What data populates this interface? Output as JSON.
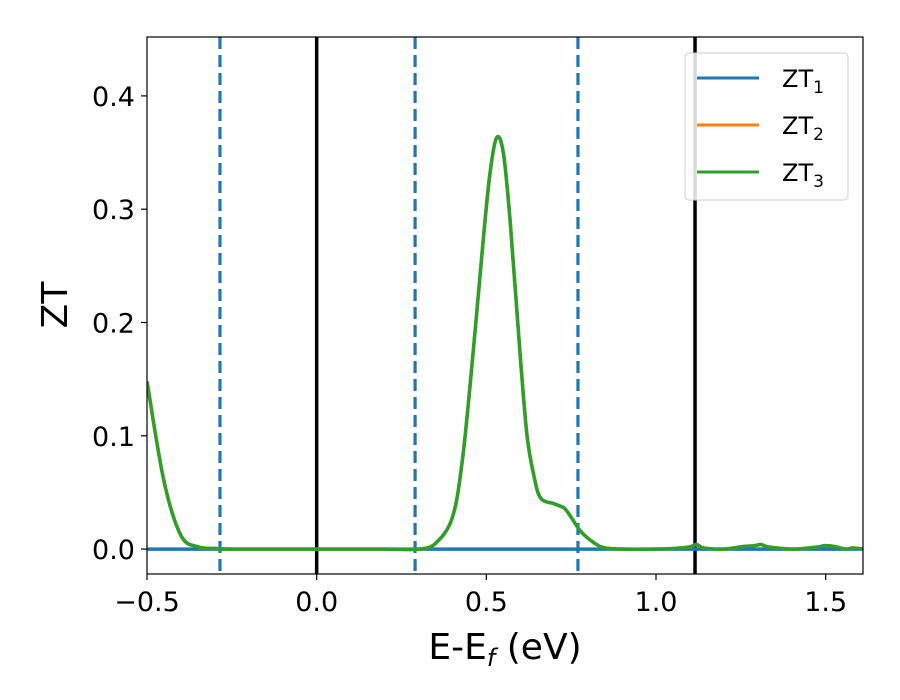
{
  "chart_data": {
    "type": "line",
    "xlabel_main": "E-E",
    "xlabel_sub": "f",
    "xlabel_unit": " (eV)",
    "ylabel": "ZT",
    "xlim": [
      -0.5,
      1.61
    ],
    "ylim": [
      -0.022,
      0.452
    ],
    "xticks": [
      -0.5,
      0.0,
      0.5,
      1.0,
      1.5
    ],
    "xtick_labels": [
      "−0.5",
      "0.0",
      "0.5",
      "1.0",
      "1.5"
    ],
    "yticks": [
      0.0,
      0.1,
      0.2,
      0.3,
      0.4
    ],
    "ytick_labels": [
      "0.0",
      "0.1",
      "0.2",
      "0.3",
      "0.4"
    ],
    "grid": false,
    "legend_position": "top-right",
    "vlines_solid": [
      0.0,
      1.115
    ],
    "vlines_dashed": [
      -0.285,
      0.29,
      0.77
    ],
    "vline_solid_color": "#000000",
    "vline_dashed_color": "#1f77b4",
    "series": [
      {
        "name_main": "ZT",
        "name_sub": "1",
        "color": "#1f77b4",
        "x": [
          -0.5,
          1.61
        ],
        "y": [
          0.0,
          0.0
        ]
      },
      {
        "name_main": "ZT",
        "name_sub": "2",
        "color": "#ff7f0e",
        "x": [
          -0.5,
          -0.45,
          -0.4,
          -0.35,
          -0.3,
          -0.25,
          -0.2,
          0.0,
          0.2,
          0.3,
          0.35,
          0.4,
          0.43,
          0.46,
          0.49,
          0.51,
          0.53,
          0.55,
          0.57,
          0.6,
          0.62,
          0.64,
          0.66,
          0.7,
          0.73,
          0.75,
          0.78,
          0.82,
          0.85,
          0.9,
          1.0,
          1.05,
          1.1,
          1.12,
          1.14,
          1.2,
          1.25,
          1.29,
          1.31,
          1.33,
          1.4,
          1.45,
          1.48,
          1.5,
          1.53,
          1.56,
          1.58,
          1.61
        ],
        "y": [
          0.148,
          0.06,
          0.012,
          0.002,
          0.0005,
          0.0,
          0.0,
          0.0,
          0.0,
          0.0,
          0.005,
          0.028,
          0.08,
          0.17,
          0.27,
          0.33,
          0.363,
          0.35,
          0.29,
          0.17,
          0.1,
          0.065,
          0.045,
          0.04,
          0.036,
          0.028,
          0.015,
          0.005,
          0.001,
          0.0,
          0.0,
          0.0005,
          0.002,
          0.004,
          0.001,
          0.0,
          0.002,
          0.003,
          0.004,
          0.002,
          0.0,
          0.001,
          0.002,
          0.003,
          0.002,
          0.0,
          0.001,
          0.0
        ]
      },
      {
        "name_main": "ZT",
        "name_sub": "3",
        "color": "#2ca02c",
        "x": [
          -0.5,
          -0.45,
          -0.4,
          -0.35,
          -0.3,
          -0.25,
          -0.2,
          0.0,
          0.2,
          0.3,
          0.35,
          0.4,
          0.43,
          0.46,
          0.49,
          0.51,
          0.53,
          0.55,
          0.57,
          0.6,
          0.62,
          0.64,
          0.66,
          0.7,
          0.73,
          0.75,
          0.78,
          0.82,
          0.85,
          0.9,
          1.0,
          1.05,
          1.1,
          1.12,
          1.14,
          1.2,
          1.25,
          1.29,
          1.31,
          1.33,
          1.4,
          1.45,
          1.48,
          1.5,
          1.53,
          1.56,
          1.58,
          1.61
        ],
        "y": [
          0.148,
          0.06,
          0.012,
          0.002,
          0.0005,
          0.0,
          0.0,
          0.0,
          0.0,
          0.0,
          0.005,
          0.028,
          0.08,
          0.17,
          0.27,
          0.33,
          0.363,
          0.35,
          0.29,
          0.17,
          0.1,
          0.065,
          0.045,
          0.04,
          0.036,
          0.028,
          0.015,
          0.005,
          0.001,
          0.0,
          0.0,
          0.0005,
          0.002,
          0.004,
          0.001,
          0.0,
          0.002,
          0.003,
          0.004,
          0.002,
          0.0,
          0.001,
          0.002,
          0.003,
          0.002,
          0.0,
          0.001,
          0.0
        ]
      }
    ]
  }
}
